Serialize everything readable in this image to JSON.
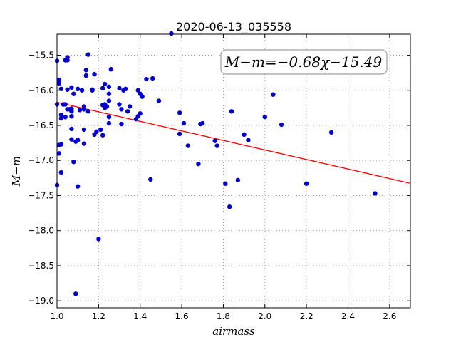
{
  "chart_data": {
    "type": "scatter",
    "title": "2020-06-13_035558",
    "xlabel": "airmass",
    "ylabel": "M−m",
    "xlim": [
      1.0,
      2.7
    ],
    "ylim": [
      -19.1,
      -15.2
    ],
    "y_inverted": true,
    "grid": true,
    "grid_style": "dotted",
    "x_ticks": [
      1.0,
      1.2,
      1.4,
      1.6,
      1.8,
      2.0,
      2.2,
      2.4,
      2.6
    ],
    "x_tick_labels": [
      "1.0",
      "1.2",
      "1.4",
      "1.6",
      "1.8",
      "2.0",
      "2.2",
      "2.4",
      "2.6"
    ],
    "y_ticks": [
      -15.5,
      -16.0,
      -16.5,
      -17.0,
      -17.5,
      -18.0,
      -18.5,
      -19.0
    ],
    "y_tick_labels": [
      "−15.5",
      "−16.0",
      "−16.5",
      "−17.0",
      "−17.5",
      "−18.0",
      "−18.5",
      "−19.0"
    ],
    "annotation": "M−m=−0.68χ−15.49",
    "fit": {
      "slope": -0.68,
      "intercept": -15.49,
      "color": "#ff0000"
    },
    "point_color": "#0000cc",
    "points": [
      [
        1.0,
        -15.58
      ],
      [
        1.0,
        -16.2
      ],
      [
        1.0,
        -17.35
      ],
      [
        1.01,
        -15.85
      ],
      [
        1.01,
        -15.9
      ],
      [
        1.01,
        -16.9
      ],
      [
        1.01,
        -16.78
      ],
      [
        1.02,
        -15.98
      ],
      [
        1.02,
        -16.4
      ],
      [
        1.02,
        -16.35
      ],
      [
        1.02,
        -16.77
      ],
      [
        1.02,
        -17.17
      ],
      [
        1.03,
        -16.2
      ],
      [
        1.04,
        -15.57
      ],
      [
        1.04,
        -16.2
      ],
      [
        1.04,
        -16.38
      ],
      [
        1.05,
        -15.53
      ],
      [
        1.05,
        -15.57
      ],
      [
        1.05,
        -16.27
      ],
      [
        1.05,
        -15.99
      ],
      [
        1.06,
        -16.27
      ],
      [
        1.07,
        -15.96
      ],
      [
        1.07,
        -16.37
      ],
      [
        1.07,
        -16.26
      ],
      [
        1.07,
        -16.3
      ],
      [
        1.07,
        -16.7
      ],
      [
        1.07,
        -16.55
      ],
      [
        1.08,
        -16.05
      ],
      [
        1.08,
        -17.02
      ],
      [
        1.09,
        -18.9
      ],
      [
        1.09,
        -16.73
      ],
      [
        1.1,
        -16.71
      ],
      [
        1.1,
        -15.98
      ],
      [
        1.1,
        -17.37
      ],
      [
        1.11,
        -16.28
      ],
      [
        1.12,
        -16.0
      ],
      [
        1.13,
        -16.56
      ],
      [
        1.13,
        -16.76
      ],
      [
        1.13,
        -16.23
      ],
      [
        1.13,
        -16.27
      ],
      [
        1.14,
        -15.71
      ],
      [
        1.14,
        -15.79
      ],
      [
        1.15,
        -15.49
      ],
      [
        1.15,
        -16.3
      ],
      [
        1.17,
        -15.99
      ],
      [
        1.17,
        -16.0
      ],
      [
        1.18,
        -15.77
      ],
      [
        1.18,
        -16.63
      ],
      [
        1.19,
        -16.59
      ],
      [
        1.2,
        -18.12
      ],
      [
        1.21,
        -16.56
      ],
      [
        1.22,
        -15.97
      ],
      [
        1.22,
        -16.21
      ],
      [
        1.22,
        -16.64
      ],
      [
        1.23,
        -15.91
      ],
      [
        1.23,
        -16.25
      ],
      [
        1.23,
        -16.2
      ],
      [
        1.24,
        -16.23
      ],
      [
        1.25,
        -15.95
      ],
      [
        1.25,
        -16.05
      ],
      [
        1.25,
        -16.15
      ],
      [
        1.25,
        -16.38
      ],
      [
        1.25,
        -16.47
      ],
      [
        1.26,
        -15.7
      ],
      [
        1.3,
        -16.2
      ],
      [
        1.3,
        -15.97
      ],
      [
        1.31,
        -16.27
      ],
      [
        1.31,
        -16.48
      ],
      [
        1.32,
        -16.0
      ],
      [
        1.33,
        -15.98
      ],
      [
        1.34,
        -16.3
      ],
      [
        1.35,
        -16.23
      ],
      [
        1.38,
        -16.41
      ],
      [
        1.39,
        -16.0
      ],
      [
        1.39,
        -16.37
      ],
      [
        1.4,
        -16.05
      ],
      [
        1.4,
        -16.33
      ],
      [
        1.41,
        -16.09
      ],
      [
        1.43,
        -15.84
      ],
      [
        1.45,
        -17.27
      ],
      [
        1.46,
        -15.83
      ],
      [
        1.49,
        -16.15
      ],
      [
        1.55,
        -15.19
      ],
      [
        1.59,
        -16.32
      ],
      [
        1.59,
        -16.62
      ],
      [
        1.61,
        -16.47
      ],
      [
        1.63,
        -16.79
      ],
      [
        1.68,
        -17.05
      ],
      [
        1.69,
        -16.48
      ],
      [
        1.7,
        -16.47
      ],
      [
        1.76,
        -16.72
      ],
      [
        1.77,
        -16.79
      ],
      [
        1.81,
        -17.33
      ],
      [
        1.83,
        -17.66
      ],
      [
        1.84,
        -16.3
      ],
      [
        1.87,
        -17.28
      ],
      [
        1.9,
        -16.63
      ],
      [
        1.92,
        -16.71
      ],
      [
        2.0,
        -16.38
      ],
      [
        2.04,
        -16.06
      ],
      [
        2.08,
        -16.49
      ],
      [
        2.2,
        -17.33
      ],
      [
        2.32,
        -16.6
      ],
      [
        2.53,
        -17.47
      ]
    ]
  }
}
